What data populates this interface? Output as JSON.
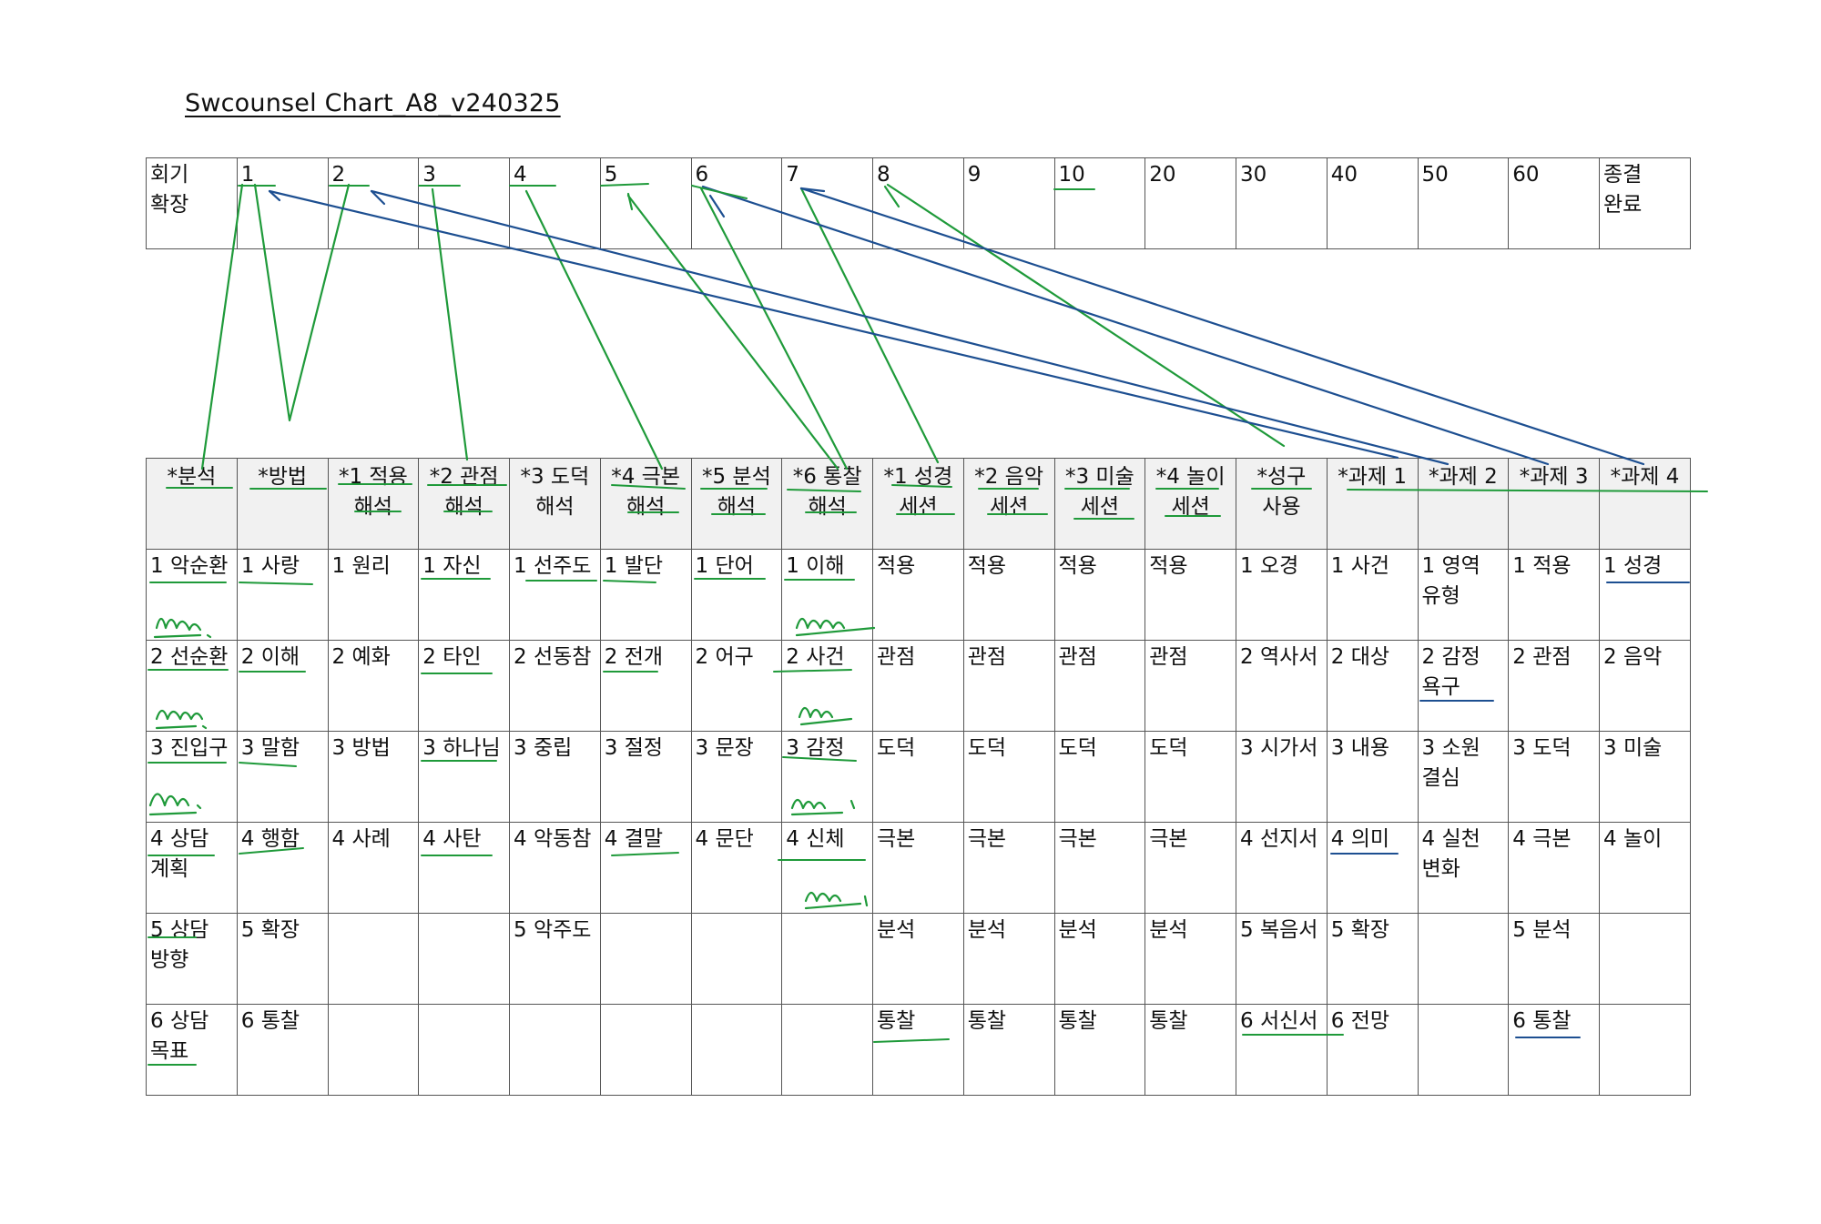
{
  "title": "Swcounsel Chart_A8_v240325",
  "session_row": [
    "회기\n확장",
    "1",
    "2",
    "3",
    "4",
    "5",
    "6",
    "7",
    "8",
    "9",
    "10",
    "20",
    "30",
    "40",
    "50",
    "60",
    "종결\n완료"
  ],
  "headers": [
    "*분석",
    "*방법",
    "*1 적용\n해석",
    "*2 관점\n해석",
    "*3 도덕\n해석",
    "*4 극본\n해석",
    "*5 분석\n해석",
    "*6 통찰\n해석",
    "*1 성경\n세션",
    "*2 음악\n세션",
    "*3 미술\n세션",
    "*4 놀이\n세션",
    "*성구\n사용",
    "*과제 1",
    "*과제 2",
    "*과제 3",
    "*과제 4"
  ],
  "rows": [
    [
      "1 악순환",
      "1 사랑",
      "1 원리",
      "1 자신",
      "1 선주도",
      "1 발단",
      "1 단어",
      "1 이해",
      "적용",
      "적용",
      "적용",
      "적용",
      "1 오경",
      "1 사건",
      "1 영역\n유형",
      "1 적용",
      "1 성경"
    ],
    [
      "2 선순환",
      "2 이해",
      "2 예화",
      "2 타인",
      "2 선동참",
      "2 전개",
      "2 어구",
      "2 사건",
      "관점",
      "관점",
      "관점",
      "관점",
      "2 역사서",
      "2 대상",
      "2 감정\n욕구",
      "2 관점",
      "2 음악"
    ],
    [
      "3 진입구",
      "3 말함",
      "3 방법",
      "3 하나님",
      "3 중립",
      "3 절정",
      "3 문장",
      "3 감정",
      "도덕",
      "도덕",
      "도덕",
      "도덕",
      "3 시가서",
      "3 내용",
      "3 소원\n결심",
      "3 도덕",
      "3 미술"
    ],
    [
      "4 상담\n계획",
      "4 행함",
      "4 사례",
      "4 사탄",
      "4 악동참",
      "4 결말",
      "4 문단",
      "4 신체",
      "극본",
      "극본",
      "극본",
      "극본",
      "4 선지서",
      "4 의미",
      "4 실천\n변화",
      "4 극본",
      "4 놀이"
    ],
    [
      "5 상담\n방향",
      "5 확장",
      "",
      "",
      "5 악주도",
      "",
      "",
      "",
      "분석",
      "분석",
      "분석",
      "분석",
      "5 복음서",
      "5 확장",
      "",
      "5 분석",
      ""
    ],
    [
      "6 상담\n목표",
      "6 통찰",
      "",
      "",
      "",
      "",
      "",
      "",
      "통찰",
      "통찰",
      "통찰",
      "통찰",
      "6 서신서",
      "6 전망",
      "",
      "6 통찰",
      ""
    ]
  ],
  "colors": {
    "ink_green": "#1f9a3a",
    "ink_blue": "#1d4f91",
    "border": "#555555",
    "header_bg": "#f1f1f1"
  }
}
